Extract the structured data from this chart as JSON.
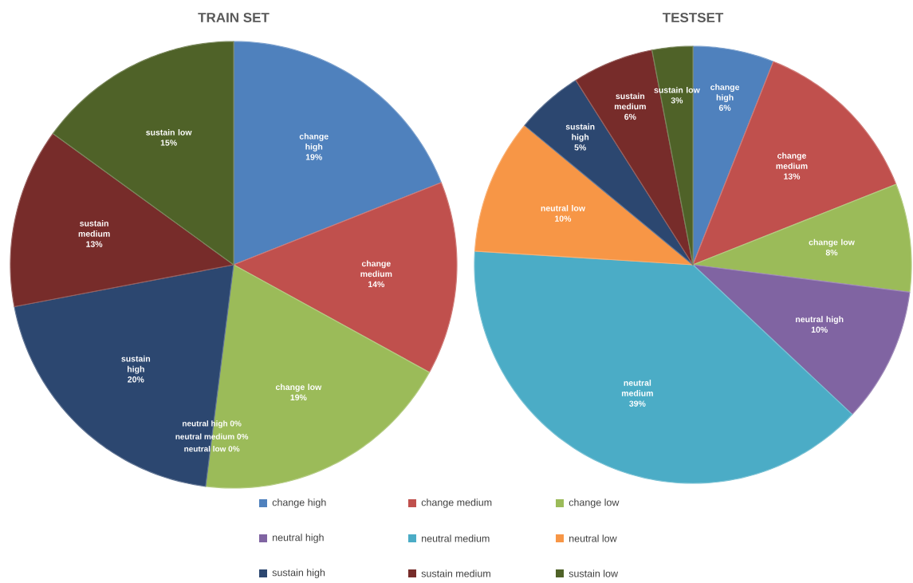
{
  "chart_data": [
    {
      "type": "pie",
      "title": "TRAIN SET",
      "legend": "bottom",
      "categories": [
        "change high",
        "change medium",
        "change low",
        "neutral high",
        "neutral medium",
        "neutral low",
        "sustain high",
        "sustain medium",
        "sustain low"
      ],
      "values": [
        19,
        14,
        19,
        0,
        0,
        0,
        20,
        13,
        15
      ],
      "value_labels": [
        "19%",
        "14%",
        "19%",
        "0%",
        "0%",
        "0%",
        "20%",
        "13%",
        "15%"
      ],
      "colors": [
        "#4f81bd",
        "#c0504d",
        "#9bbb59",
        "#8064a2",
        "#4bacc6",
        "#f79646",
        "#2c4770",
        "#772c2a",
        "#4f6228"
      ]
    },
    {
      "type": "pie",
      "title": "TESTSET",
      "categories": [
        "change high",
        "change medium",
        "change low",
        "neutral high",
        "neutral medium",
        "neutral low",
        "sustain high",
        "sustain medium",
        "sustain low"
      ],
      "values": [
        6,
        13,
        8,
        10,
        39,
        10,
        5,
        6,
        3
      ],
      "value_labels": [
        "6%",
        "13%",
        "8%",
        "10%",
        "39%",
        "10%",
        "5%",
        "6%",
        "3%"
      ],
      "colors": [
        "#4f81bd",
        "#c0504d",
        "#9bbb59",
        "#8064a2",
        "#4bacc6",
        "#f79646",
        "#2c4770",
        "#772c2a",
        "#4f6228"
      ]
    }
  ]
}
